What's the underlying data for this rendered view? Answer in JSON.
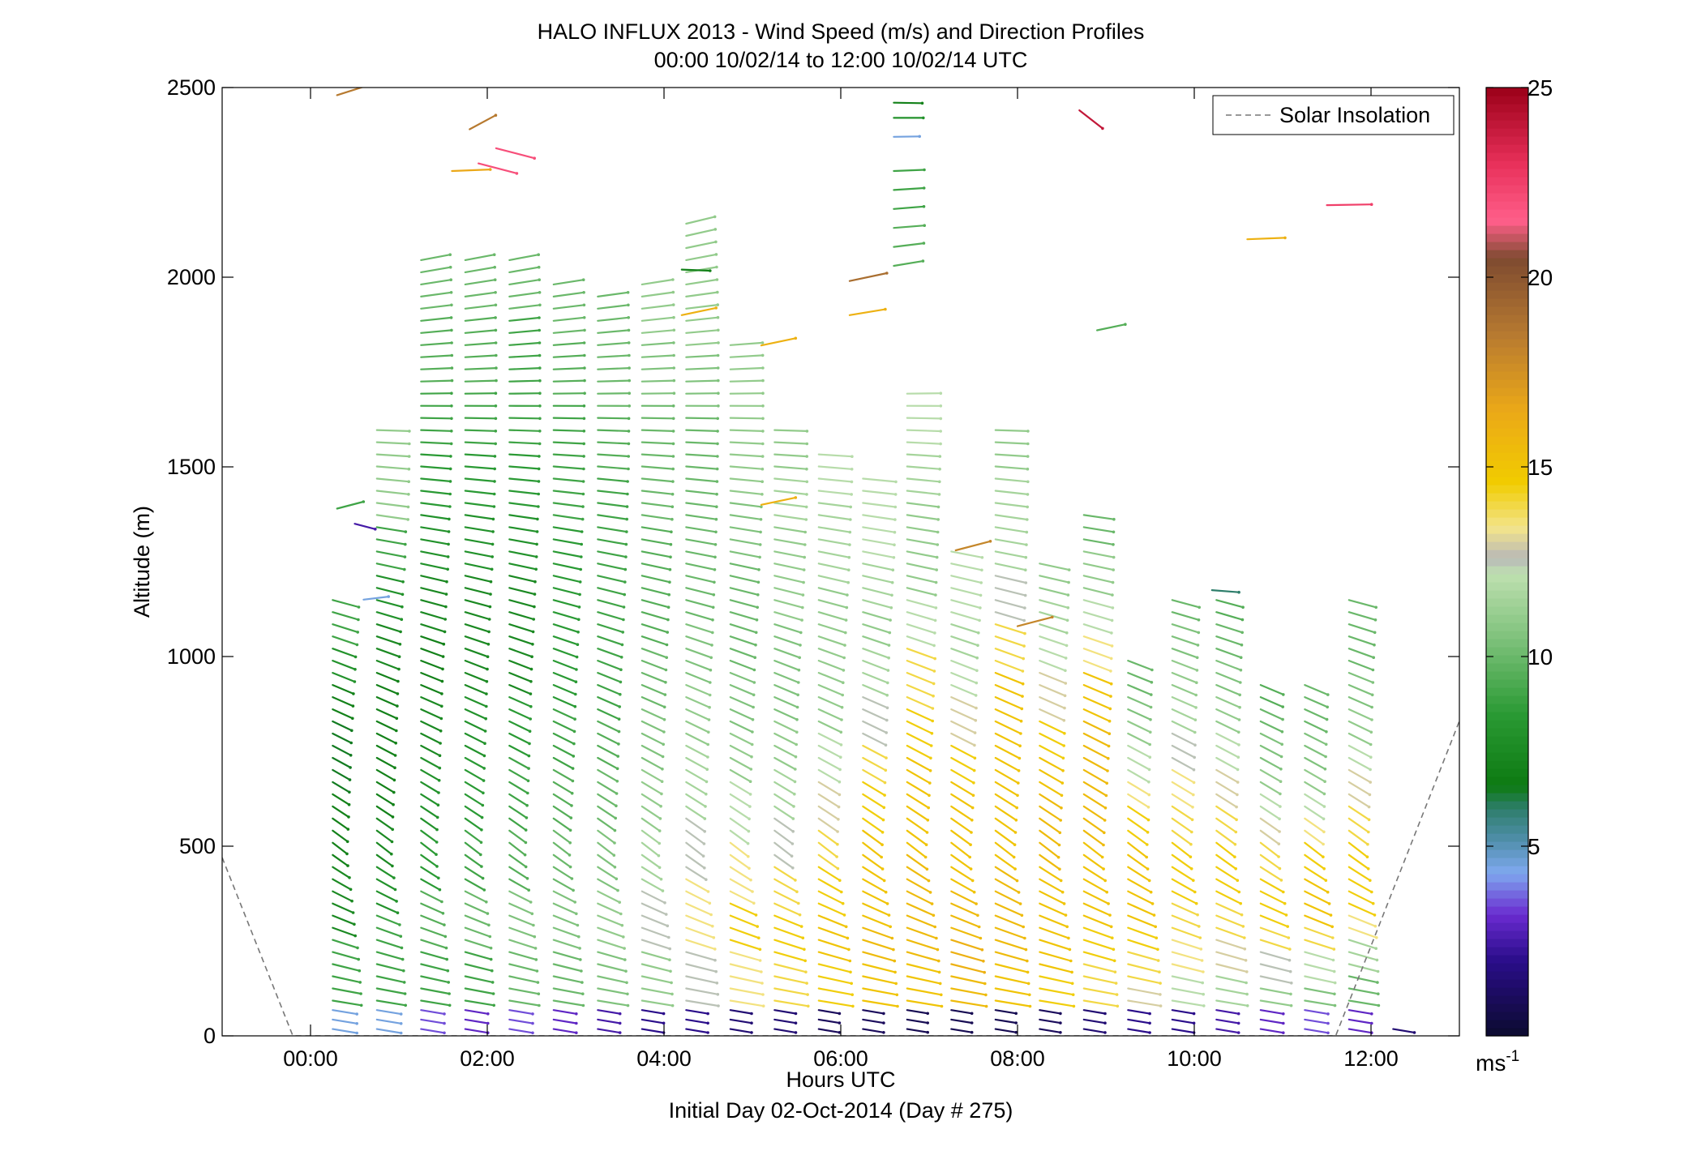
{
  "chart_data": {
    "type": "scatter",
    "title": "HALO INFLUX 2013 - Wind Speed (m/s) and Direction Profiles",
    "subtitle": "00:00 10/02/14 to 12:00 10/02/14  UTC",
    "xlabel": "Hours UTC",
    "xlabel2": "Initial Day 02-Oct-2014 (Day # 275)",
    "ylabel": "Altitude (m)",
    "xlim": [
      -1,
      13
    ],
    "ylim": [
      0,
      2500
    ],
    "x_ticks": [
      0,
      2,
      4,
      6,
      8,
      10,
      12
    ],
    "x_tick_labels": [
      "00:00",
      "02:00",
      "04:00",
      "06:00",
      "08:00",
      "10:00",
      "12:00"
    ],
    "y_ticks": [
      0,
      500,
      1000,
      1500,
      2000,
      2500
    ],
    "y_tick_labels": [
      "0",
      "500",
      "1000",
      "1500",
      "2000",
      "2500"
    ],
    "grid": false,
    "legend": {
      "label": "Solar Insolation",
      "placement": "top-right"
    },
    "colorbar": {
      "range": [
        0,
        25
      ],
      "ticks": [
        5,
        10,
        15,
        20,
        25
      ],
      "tick_labels": [
        "5",
        "10",
        "15",
        "20",
        "25"
      ],
      "unit_base": "ms",
      "unit_exp": "-1",
      "stops": [
        {
          "v": 0,
          "c": "#0b0b2e"
        },
        {
          "v": 2,
          "c": "#2a0d8a"
        },
        {
          "v": 3.2,
          "c": "#6a2bd0"
        },
        {
          "v": 4.3,
          "c": "#7fa8ef"
        },
        {
          "v": 5.2,
          "c": "#4e8ea8"
        },
        {
          "v": 6.0,
          "c": "#2e7e6b"
        },
        {
          "v": 6.6,
          "c": "#0d7a12"
        },
        {
          "v": 8.5,
          "c": "#2a9a34"
        },
        {
          "v": 10.5,
          "c": "#7fc27c"
        },
        {
          "v": 12.2,
          "c": "#bfe0b0"
        },
        {
          "v": 12.6,
          "c": "#b8b8b8"
        },
        {
          "v": 13.4,
          "c": "#f3e48a"
        },
        {
          "v": 14.6,
          "c": "#f1cc00"
        },
        {
          "v": 16.5,
          "c": "#eba818"
        },
        {
          "v": 18.5,
          "c": "#b77a30"
        },
        {
          "v": 20.5,
          "c": "#7e4b30"
        },
        {
          "v": 21.5,
          "c": "#ff5f8a"
        },
        {
          "v": 23.0,
          "c": "#e8305a"
        },
        {
          "v": 25,
          "c": "#9b0018"
        }
      ]
    },
    "solar_insolation": {
      "x": [
        -1.0,
        -0.2,
        -0.15,
        11.55,
        11.6,
        13.0
      ],
      "y": [
        470,
        0,
        0,
        0,
        0,
        830
      ]
    },
    "profiles": [
      {
        "t": 0.25,
        "zmax": 1150,
        "speed": [
          4.5,
          9,
          9,
          7.5,
          7.5,
          7,
          7,
          6.5,
          6.5,
          7,
          8,
          9
        ]
      },
      {
        "t": 0.75,
        "zmax": 1600,
        "speed": [
          4.5,
          9,
          9,
          8,
          7.5,
          7,
          7,
          7,
          7.5,
          8,
          9,
          11,
          11
        ]
      },
      {
        "t": 1.25,
        "zmax": 2050,
        "speed": [
          3.5,
          9,
          9.5,
          8.5,
          8,
          7.5,
          7,
          7.5,
          8,
          8.5,
          9,
          9.5,
          10
        ]
      },
      {
        "t": 1.75,
        "zmax": 2050,
        "speed": [
          3.0,
          9,
          10,
          9,
          8.5,
          8,
          7.5,
          7.5,
          8,
          8.5,
          9,
          9.5,
          10
        ]
      },
      {
        "t": 2.25,
        "zmax": 2050,
        "speed": [
          3.5,
          10,
          10.5,
          9.5,
          9,
          8.5,
          7.5,
          7.5,
          8,
          8.5,
          9,
          9,
          10
        ]
      },
      {
        "t": 2.75,
        "zmax": 2000,
        "speed": [
          3.0,
          10,
          10.5,
          10,
          9.5,
          9,
          8.5,
          8.5,
          8.5,
          9,
          9,
          9.5,
          10
        ]
      },
      {
        "t": 3.25,
        "zmax": 1950,
        "speed": [
          2.5,
          10.5,
          11,
          10.5,
          10,
          9.5,
          9,
          9,
          9,
          9,
          9.5,
          10,
          10
        ]
      },
      {
        "t": 3.75,
        "zmax": 2000,
        "speed": [
          2.0,
          11,
          12.5,
          11.5,
          11,
          10.5,
          10,
          9.5,
          9.5,
          10,
          10,
          10.5,
          11
        ]
      },
      {
        "t": 4.25,
        "zmax": 2150,
        "speed": [
          2.0,
          12.5,
          13.5,
          12.5,
          11.5,
          11,
          10.5,
          10,
          10,
          10,
          10.5,
          11,
          11
        ]
      },
      {
        "t": 4.75,
        "zmax": 1850,
        "speed": [
          1.5,
          13.5,
          14.5,
          13.5,
          12,
          11,
          10.5,
          10,
          10,
          10.5,
          11,
          11,
          11
        ]
      },
      {
        "t": 5.25,
        "zmax": 1600,
        "speed": [
          1.5,
          14,
          14.5,
          14,
          12.5,
          11.5,
          11,
          10.5,
          10.5,
          11,
          11,
          11.5,
          11
        ]
      },
      {
        "t": 5.75,
        "zmax": 1550,
        "speed": [
          1.0,
          14.5,
          15,
          14.5,
          14,
          13,
          12,
          11,
          11,
          11,
          11.5,
          11.5,
          12
        ]
      },
      {
        "t": 6.25,
        "zmax": 1500,
        "speed": [
          1.0,
          15,
          15.5,
          15,
          15,
          14.5,
          14,
          12.5,
          11.5,
          11,
          11.5,
          12,
          12
        ]
      },
      {
        "t": 6.75,
        "zmax": 1700,
        "speed": [
          0.8,
          15,
          15.5,
          15.5,
          15,
          15,
          14.5,
          14,
          12,
          11,
          11,
          11.5,
          12
        ]
      },
      {
        "t": 7.25,
        "zmax": 1300,
        "speed": [
          0.8,
          15.5,
          16,
          15.5,
          15,
          15,
          15,
          14.5,
          13,
          12,
          11.5,
          12,
          12
        ]
      },
      {
        "t": 7.75,
        "zmax": 1600,
        "speed": [
          0.8,
          15,
          15.5,
          15.5,
          15,
          15,
          15,
          15,
          14,
          12.5,
          11.5,
          11.5,
          11
        ]
      },
      {
        "t": 8.25,
        "zmax": 1250,
        "speed": [
          1.0,
          14.5,
          15,
          15,
          15,
          15.5,
          15.5,
          15,
          14.5,
          13,
          12,
          11.5,
          11
        ]
      },
      {
        "t": 8.75,
        "zmax": 1400,
        "speed": [
          1.5,
          14,
          14.5,
          15,
          15,
          15.5,
          15.5,
          15.5,
          15,
          13.5,
          12,
          11,
          10
        ]
      },
      {
        "t": 9.25,
        "zmax": 1000,
        "speed": [
          2.0,
          13,
          14,
          14.5,
          15,
          15,
          15,
          14.5,
          13.5,
          12,
          11,
          10.5,
          10
        ]
      },
      {
        "t": 9.75,
        "zmax": 1180,
        "speed": [
          2.0,
          12,
          13.5,
          14,
          14.5,
          14.5,
          14,
          13.5,
          12.5,
          11.5,
          11,
          10.5,
          10
        ]
      },
      {
        "t": 10.25,
        "zmax": 1180,
        "speed": [
          2.5,
          11.5,
          13,
          14,
          14.5,
          14.5,
          14,
          13,
          12,
          11,
          10.5,
          10,
          9.5
        ]
      },
      {
        "t": 10.75,
        "zmax": 950,
        "speed": [
          3.0,
          11,
          12.5,
          14,
          14.5,
          14.5,
          14,
          13,
          12,
          11,
          10.5,
          10,
          9.5
        ]
      },
      {
        "t": 11.25,
        "zmax": 950,
        "speed": [
          3.5,
          10.5,
          12,
          14,
          15,
          15,
          14.5,
          13.5,
          12,
          11,
          10.5,
          10,
          10
        ]
      },
      {
        "t": 11.75,
        "zmax": 1150,
        "speed": [
          3.0,
          10,
          11.5,
          13.5,
          14.5,
          14.5,
          14,
          13,
          12,
          11,
          10.5,
          10,
          10
        ]
      },
      {
        "t": 12.25,
        "zmax": 40,
        "speed": [
          1.5
        ]
      }
    ],
    "isolated_barbs": [
      {
        "t": 0.3,
        "z": 2480,
        "speed": 18.5,
        "dir": 235
      },
      {
        "t": 1.8,
        "z": 2390,
        "speed": 18.5,
        "dir": 220
      },
      {
        "t": 2.1,
        "z": 2340,
        "speed": 22.0,
        "dir": 300
      },
      {
        "t": 1.9,
        "z": 2300,
        "speed": 22.0,
        "dir": 300
      },
      {
        "t": 1.6,
        "z": 2280,
        "speed": 16.5,
        "dir": 265
      },
      {
        "t": 0.3,
        "z": 1390,
        "speed": 9.0,
        "dir": 240
      },
      {
        "t": 0.5,
        "z": 1350,
        "speed": 2.5,
        "dir": 300
      },
      {
        "t": 0.6,
        "z": 1150,
        "speed": 4.5,
        "dir": 255
      },
      {
        "t": 4.2,
        "z": 2020,
        "speed": 7.0,
        "dir": 275
      },
      {
        "t": 4.2,
        "z": 1900,
        "speed": 16.0,
        "dir": 245
      },
      {
        "t": 5.1,
        "z": 1820,
        "speed": 16.0,
        "dir": 245
      },
      {
        "t": 5.1,
        "z": 1400,
        "speed": 16.0,
        "dir": 245
      },
      {
        "t": 6.1,
        "z": 1990,
        "speed": 19.0,
        "dir": 245
      },
      {
        "t": 6.1,
        "z": 1900,
        "speed": 16.0,
        "dir": 250
      },
      {
        "t": 6.6,
        "z": 2460,
        "speed": 7.0,
        "dir": 272
      },
      {
        "t": 6.6,
        "z": 2420,
        "speed": 8.0,
        "dir": 270
      },
      {
        "t": 6.6,
        "z": 2370,
        "speed": 4.5,
        "dir": 268
      },
      {
        "t": 6.6,
        "z": 2280,
        "speed": 9.0,
        "dir": 265
      },
      {
        "t": 6.6,
        "z": 2230,
        "speed": 9.0,
        "dir": 262
      },
      {
        "t": 6.6,
        "z": 2180,
        "speed": 9.0,
        "dir": 260
      },
      {
        "t": 6.6,
        "z": 2130,
        "speed": 9.5,
        "dir": 260
      },
      {
        "t": 6.6,
        "z": 2080,
        "speed": 9.5,
        "dir": 255
      },
      {
        "t": 6.6,
        "z": 2030,
        "speed": 9.5,
        "dir": 250
      },
      {
        "t": 8.7,
        "z": 2440,
        "speed": 24.0,
        "dir": 330
      },
      {
        "t": 8.9,
        "z": 1860,
        "speed": 9.5,
        "dir": 245
      },
      {
        "t": 10.6,
        "z": 2100,
        "speed": 16.0,
        "dir": 265
      },
      {
        "t": 11.5,
        "z": 2190,
        "speed": 22.5,
        "dir": 268
      },
      {
        "t": 10.2,
        "z": 1175,
        "speed": 6.0,
        "dir": 280
      },
      {
        "t": 7.3,
        "z": 1280,
        "speed": 18.0,
        "dir": 240
      },
      {
        "t": 8.0,
        "z": 1080,
        "speed": 18.0,
        "dir": 240
      }
    ]
  }
}
